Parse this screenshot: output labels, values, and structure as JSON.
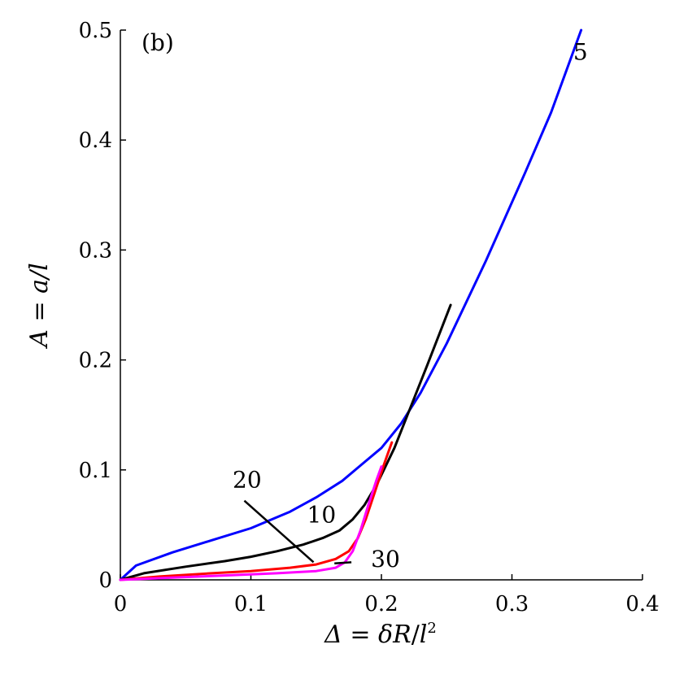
{
  "chart_data": {
    "type": "line",
    "title": "",
    "panel_label": "(b)",
    "xlabel": {
      "lhs": "Δ",
      "eq": " = ",
      "num": "δR",
      "slash": "/",
      "base": "l",
      "sup": "2"
    },
    "ylabel": {
      "lhs": "A",
      "eq": " = ",
      "rhs": "a/l"
    },
    "xlim": [
      0,
      0.4
    ],
    "ylim": [
      0,
      0.5
    ],
    "xticks": [
      0,
      0.1,
      0.2,
      0.3,
      0.4
    ],
    "xtick_labels": [
      "0",
      "0.1",
      "0.2",
      "0.3",
      "0.4"
    ],
    "yticks": [
      0,
      0.1,
      0.2,
      0.3,
      0.4,
      0.5
    ],
    "ytick_labels": [
      "0",
      "0.1",
      "0.2",
      "0.3",
      "0.4",
      "0.5"
    ],
    "grid": false,
    "legend": "none",
    "series": [
      {
        "label": "5",
        "color": "#0000ff",
        "x": [
          0,
          0.012,
          0.04,
          0.07,
          0.1,
          0.13,
          0.15,
          0.17,
          0.185,
          0.2,
          0.215,
          0.23,
          0.25,
          0.28,
          0.31,
          0.33,
          0.353
        ],
        "y": [
          0,
          0.013,
          0.025,
          0.036,
          0.047,
          0.062,
          0.075,
          0.09,
          0.105,
          0.12,
          0.142,
          0.17,
          0.215,
          0.29,
          0.37,
          0.425,
          0.5
        ]
      },
      {
        "label": "10",
        "color": "#000000",
        "x": [
          0,
          0.018,
          0.05,
          0.08,
          0.1,
          0.12,
          0.14,
          0.155,
          0.168,
          0.178,
          0.187,
          0.197,
          0.21,
          0.22,
          0.235,
          0.253
        ],
        "y": [
          0,
          0.006,
          0.012,
          0.017,
          0.021,
          0.026,
          0.032,
          0.038,
          0.045,
          0.055,
          0.068,
          0.088,
          0.12,
          0.15,
          0.195,
          0.25
        ]
      },
      {
        "label": "20",
        "color": "#ff0000",
        "x": [
          0,
          0.03,
          0.07,
          0.1,
          0.13,
          0.15,
          0.165,
          0.175,
          0.182,
          0.188,
          0.195,
          0.202,
          0.208
        ],
        "y": [
          0,
          0.003,
          0.006,
          0.008,
          0.011,
          0.014,
          0.019,
          0.026,
          0.038,
          0.055,
          0.08,
          0.105,
          0.125
        ]
      },
      {
        "label": "30",
        "color": "#ff00ff",
        "x": [
          0,
          0.04,
          0.08,
          0.12,
          0.15,
          0.165,
          0.172,
          0.178,
          0.184,
          0.19,
          0.196,
          0.2
        ],
        "y": [
          0,
          0.002,
          0.004,
          0.006,
          0.008,
          0.011,
          0.016,
          0.026,
          0.045,
          0.068,
          0.09,
          0.103
        ]
      }
    ],
    "annotations": [
      {
        "text": "5",
        "x": 0.347,
        "y": 0.473,
        "series": 0
      },
      {
        "text": "10",
        "x": 0.143,
        "y": 0.052,
        "series": 1
      },
      {
        "text": "20",
        "x": 0.086,
        "y": 0.084,
        "series": 2,
        "pointer": {
          "from": [
            0.095,
            0.072
          ],
          "to": [
            0.148,
            0.016
          ]
        }
      },
      {
        "text": "30",
        "x": 0.192,
        "y": 0.012,
        "series": 3,
        "pointer": {
          "from": [
            0.177,
            0.016
          ],
          "to": [
            0.164,
            0.015
          ]
        }
      }
    ]
  }
}
